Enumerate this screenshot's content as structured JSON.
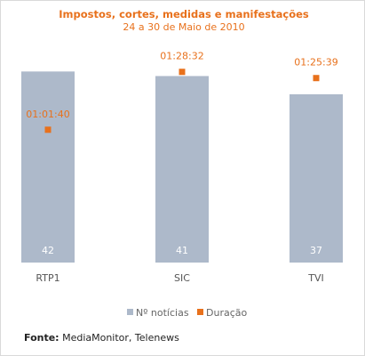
{
  "chart_data": {
    "type": "bar",
    "title": "Impostos, cortes, medidas e manifestações",
    "subtitle": "24 a 30 de Maio de 2010",
    "categories": [
      "RTP1",
      "SIC",
      "TVI"
    ],
    "series": [
      {
        "name": "Nº notícias",
        "type": "bar",
        "values": [
          42,
          41,
          37
        ],
        "color": "#adb9ca"
      },
      {
        "name": "Duração",
        "type": "scatter",
        "values": [
          "01:01:40",
          "01:28:32",
          "01:25:39"
        ],
        "seconds": [
          3700,
          5312,
          5139
        ],
        "color": "#e8711c"
      }
    ],
    "bars_ylim": [
      0,
      45
    ],
    "duration_ylim_seconds": [
      0,
      6000
    ],
    "grid": false,
    "legend_position": "bottom"
  },
  "source": {
    "label": "Fonte:",
    "text": "MediaMonitor, Telenews"
  }
}
